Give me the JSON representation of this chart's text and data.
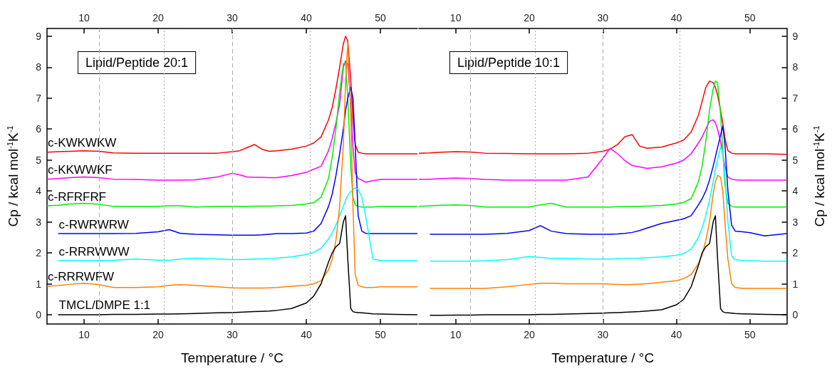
{
  "chart_data": [
    {
      "type": "line",
      "annotations": [
        "Lipid/Peptide 20:1"
      ],
      "xlabel": "Temperature / °C",
      "ylabel": "Cp / kcal mol$^{-1}$K$^{-1}$",
      "xlim": [
        5,
        55
      ],
      "xticks": [
        10,
        20,
        30,
        40,
        50
      ],
      "x2lim": [
        5,
        55
      ],
      "x2ticks": [
        10,
        20,
        30,
        40,
        50
      ],
      "ylim": [
        -0.3,
        9.25
      ],
      "yticks": [
        0,
        1,
        2,
        3,
        4,
        5,
        6,
        7,
        8,
        9
      ],
      "ref_lines": [
        {
          "axis": "x",
          "value": 12,
          "line_style": "dashed",
          "color": "#aaaaaa"
        },
        {
          "axis": "x",
          "value": 20.8,
          "line_style": "dotted",
          "color": "#aaaaaa"
        },
        {
          "axis": "x",
          "value": 30,
          "line_style": "dashed",
          "color": "#aaaaaa"
        },
        {
          "axis": "x",
          "value": 40.5,
          "line_style": "dotted",
          "color": "#aaaaaa"
        }
      ],
      "x": [
        5,
        6.5,
        8,
        10,
        12,
        14,
        17,
        20,
        21.5,
        23,
        25,
        28,
        30,
        31,
        32,
        33,
        34,
        35,
        36,
        38,
        40,
        41,
        42,
        43,
        43.5,
        44,
        44.5,
        45,
        45.3,
        45.6,
        46,
        46.3,
        46.6,
        47,
        47.5,
        48,
        49,
        50,
        52,
        55
      ],
      "series": [
        {
          "name": "c-KWKWKW",
          "color": "#ff0000",
          "values": [
            5.25,
            5.27,
            5.28,
            5.3,
            5.28,
            5.23,
            5.22,
            5.22,
            5.22,
            5.22,
            5.22,
            5.22,
            5.27,
            5.3,
            5.4,
            5.5,
            5.35,
            5.28,
            5.3,
            5.35,
            5.45,
            5.55,
            5.75,
            6.3,
            6.7,
            7.3,
            8.0,
            8.75,
            9.0,
            8.85,
            7.6,
            6.3,
            5.5,
            5.25,
            5.22,
            5.2,
            5.2,
            5.2,
            5.2,
            5.2
          ]
        },
        {
          "name": "c-KKWWKF",
          "color": "#ff00ff",
          "values": [
            4.38,
            4.4,
            4.43,
            4.45,
            4.43,
            4.38,
            4.37,
            4.35,
            4.35,
            4.35,
            4.36,
            4.45,
            4.57,
            4.52,
            4.45,
            4.44,
            4.44,
            4.43,
            4.43,
            4.5,
            4.6,
            4.7,
            4.8,
            5.3,
            5.7,
            6.2,
            6.8,
            8.0,
            8.2,
            8.1,
            6.8,
            5.4,
            4.6,
            4.4,
            4.35,
            4.28,
            4.33,
            4.37,
            4.38,
            4.38
          ]
        },
        {
          "name": "c-RFRFRF",
          "color": "#00ee00",
          "values": [
            3.52,
            3.54,
            3.58,
            3.6,
            3.57,
            3.5,
            3.5,
            3.5,
            3.52,
            3.52,
            3.48,
            3.5,
            3.5,
            3.5,
            3.5,
            3.51,
            3.51,
            3.51,
            3.52,
            3.53,
            3.58,
            3.62,
            3.8,
            4.4,
            5.1,
            6.0,
            7.2,
            8.1,
            8.15,
            7.0,
            4.8,
            3.8,
            3.55,
            3.5,
            3.48,
            3.48,
            3.48,
            3.5,
            3.5,
            3.5
          ]
        },
        {
          "name": "c-RWRWRW",
          "color": "#0000ff",
          "values": [
            null,
            2.62,
            2.62,
            2.62,
            2.62,
            2.62,
            2.63,
            2.68,
            2.75,
            2.63,
            2.6,
            2.58,
            2.57,
            2.57,
            2.57,
            2.57,
            2.58,
            2.6,
            2.62,
            2.62,
            2.64,
            2.7,
            2.95,
            3.5,
            3.9,
            4.5,
            5.2,
            6.0,
            6.6,
            7.0,
            7.35,
            7.0,
            5.5,
            3.2,
            2.7,
            2.63,
            2.62,
            2.62,
            2.62,
            2.62
          ]
        },
        {
          "name": "c-RRRWWW",
          "color": "#00ffff",
          "values": [
            null,
            1.74,
            1.75,
            1.75,
            1.75,
            1.76,
            1.8,
            1.76,
            1.76,
            1.8,
            1.83,
            1.8,
            1.78,
            1.78,
            1.79,
            1.8,
            1.8,
            1.82,
            1.83,
            1.87,
            1.95,
            2.02,
            2.15,
            2.45,
            2.65,
            2.9,
            3.2,
            3.5,
            3.7,
            3.85,
            3.98,
            4.05,
            4.1,
            4.05,
            3.8,
            3.2,
            1.8,
            1.75,
            1.75,
            1.75
          ]
        },
        {
          "name": "c-RRRWFW",
          "color": "#ff8000",
          "values": [
            0.92,
            0.94,
            0.98,
            1.02,
            0.97,
            0.88,
            0.88,
            0.9,
            0.95,
            0.97,
            0.95,
            0.9,
            0.87,
            0.86,
            0.86,
            0.86,
            0.86,
            0.87,
            0.88,
            0.92,
            0.95,
            1.0,
            1.1,
            1.45,
            1.8,
            2.4,
            3.5,
            5.5,
            7.5,
            8.8,
            6.5,
            3.5,
            1.3,
            0.95,
            0.9,
            0.88,
            0.88,
            0.9,
            0.9,
            0.9
          ]
        },
        {
          "name": "TMCL/DMPE 1:1",
          "color": "#000000",
          "values": [
            null,
            0,
            0,
            0,
            0,
            0.01,
            0.01,
            0.02,
            0.02,
            0.03,
            0.04,
            0.06,
            0.07,
            0.08,
            0.09,
            0.1,
            0.11,
            0.12,
            0.14,
            0.2,
            0.38,
            0.6,
            1.0,
            1.7,
            2.0,
            2.2,
            2.3,
            3.0,
            3.2,
            1.8,
            0.2,
            0.1,
            0.08,
            0.07,
            0.06,
            0.05,
            0.03,
            0.02,
            0.01,
            0
          ]
        }
      ]
    },
    {
      "type": "line",
      "annotations": [
        "Lipid/Peptide 10:1"
      ],
      "xlabel": "Temperature / °C",
      "y2label": "Cp / kcal mol$^{-1}$K$^{-1}$",
      "xlim": [
        5,
        55
      ],
      "xticks": [
        10,
        20,
        30,
        40,
        50
      ],
      "x2lim": [
        5,
        55
      ],
      "x2ticks": [
        10,
        20,
        30,
        40,
        50
      ],
      "y2lim": [
        -0.3,
        9.25
      ],
      "y2ticks": [
        0,
        1,
        2,
        3,
        4,
        5,
        6,
        7,
        8,
        9
      ],
      "ref_lines": [
        {
          "axis": "x",
          "value": 12,
          "line_style": "dashed",
          "color": "#aaaaaa"
        },
        {
          "axis": "x",
          "value": 20.8,
          "line_style": "dotted",
          "color": "#aaaaaa"
        },
        {
          "axis": "x",
          "value": 30,
          "line_style": "dashed",
          "color": "#aaaaaa"
        },
        {
          "axis": "x",
          "value": 40.5,
          "line_style": "dotted",
          "color": "#aaaaaa"
        }
      ],
      "x": [
        5,
        6.5,
        8,
        10,
        12,
        14,
        17,
        20,
        21.5,
        23,
        25,
        28,
        30,
        31,
        32,
        33,
        34,
        35,
        36,
        38,
        40,
        41,
        42,
        43,
        43.5,
        44,
        44.5,
        45,
        45.3,
        45.6,
        46,
        46.3,
        46.6,
        47,
        47.5,
        48,
        49,
        50,
        52,
        55
      ],
      "series": [
        {
          "axis": "y2",
          "color": "#ff0000",
          "values": [
            5.22,
            5.23,
            5.25,
            5.27,
            5.26,
            5.22,
            5.21,
            5.2,
            5.2,
            5.2,
            5.2,
            5.22,
            5.28,
            5.35,
            5.5,
            5.75,
            5.82,
            5.45,
            5.38,
            5.42,
            5.55,
            5.65,
            5.9,
            6.45,
            6.9,
            7.35,
            7.55,
            7.5,
            7.35,
            7.1,
            6.6,
            6.2,
            5.7,
            5.3,
            5.22,
            5.2,
            5.2,
            5.2,
            5.2,
            5.18
          ]
        },
        {
          "axis": "y2",
          "color": "#ff00ff",
          "values": [
            4.38,
            4.38,
            4.4,
            4.42,
            4.4,
            4.37,
            4.35,
            4.35,
            4.35,
            4.35,
            4.35,
            4.45,
            5.05,
            5.38,
            5.2,
            4.98,
            4.82,
            4.78,
            4.73,
            4.78,
            4.9,
            5.0,
            5.2,
            5.55,
            5.75,
            6.0,
            6.25,
            6.3,
            6.2,
            6.0,
            5.6,
            5.2,
            4.8,
            4.45,
            4.38,
            4.36,
            4.35,
            4.35,
            4.35,
            4.35
          ]
        },
        {
          "axis": "y2",
          "color": "#00ee00",
          "values": [
            3.5,
            3.52,
            3.54,
            3.55,
            3.53,
            3.48,
            3.48,
            3.48,
            3.55,
            3.6,
            3.48,
            3.48,
            3.48,
            3.48,
            3.49,
            3.49,
            3.5,
            3.5,
            3.51,
            3.53,
            3.58,
            3.63,
            3.75,
            4.3,
            4.8,
            5.6,
            6.6,
            7.3,
            7.55,
            7.5,
            6.5,
            5.3,
            4.2,
            3.6,
            3.5,
            3.48,
            3.48,
            3.48,
            3.48,
            3.48
          ]
        },
        {
          "axis": "y2",
          "color": "#0000ff",
          "values": [
            null,
            2.6,
            2.6,
            2.6,
            2.6,
            2.6,
            2.63,
            2.72,
            2.88,
            2.7,
            2.62,
            2.6,
            2.6,
            2.6,
            2.61,
            2.63,
            2.66,
            2.72,
            2.8,
            2.95,
            3.05,
            3.1,
            3.2,
            3.55,
            3.75,
            4.0,
            4.35,
            4.8,
            5.1,
            5.4,
            5.8,
            6.1,
            5.5,
            4.0,
            2.9,
            2.7,
            2.68,
            2.65,
            2.55,
            2.62
          ]
        },
        {
          "axis": "y2",
          "color": "#00ffff",
          "values": [
            null,
            1.73,
            1.73,
            1.73,
            1.73,
            1.74,
            1.78,
            1.88,
            1.85,
            1.82,
            1.82,
            1.8,
            1.8,
            1.8,
            1.81,
            1.82,
            1.82,
            1.83,
            1.84,
            1.87,
            1.92,
            1.98,
            2.12,
            2.5,
            2.8,
            3.2,
            3.7,
            4.3,
            4.7,
            5.0,
            5.4,
            5.3,
            4.5,
            3.0,
            1.9,
            1.78,
            1.75,
            1.74,
            1.73,
            1.73
          ]
        },
        {
          "axis": "y2",
          "color": "#ff8000",
          "values": [
            null,
            0.85,
            0.85,
            0.85,
            0.85,
            0.85,
            0.9,
            0.98,
            1.02,
            1.02,
            1.0,
            1.0,
            1.0,
            0.99,
            0.98,
            0.97,
            0.98,
            0.99,
            1.0,
            1.05,
            1.1,
            1.17,
            1.3,
            1.65,
            1.95,
            2.4,
            3.0,
            3.9,
            4.3,
            4.5,
            4.45,
            4.0,
            3.0,
            1.8,
            1.0,
            0.88,
            0.85,
            0.85,
            0.85,
            0.85
          ]
        },
        {
          "axis": "y2",
          "color": "#000000",
          "values": [
            null,
            -0.02,
            -0.02,
            -0.01,
            -0.01,
            0,
            0,
            0,
            0.01,
            0.01,
            0.02,
            0.04,
            0.05,
            0.06,
            0.07,
            0.08,
            0.09,
            0.1,
            0.12,
            0.16,
            0.32,
            0.5,
            0.9,
            1.6,
            2.0,
            2.2,
            2.3,
            3.0,
            3.2,
            1.8,
            0.2,
            0.1,
            0.07,
            0.06,
            0.05,
            0.04,
            0.03,
            0.02,
            0.01,
            0
          ]
        }
      ]
    }
  ]
}
